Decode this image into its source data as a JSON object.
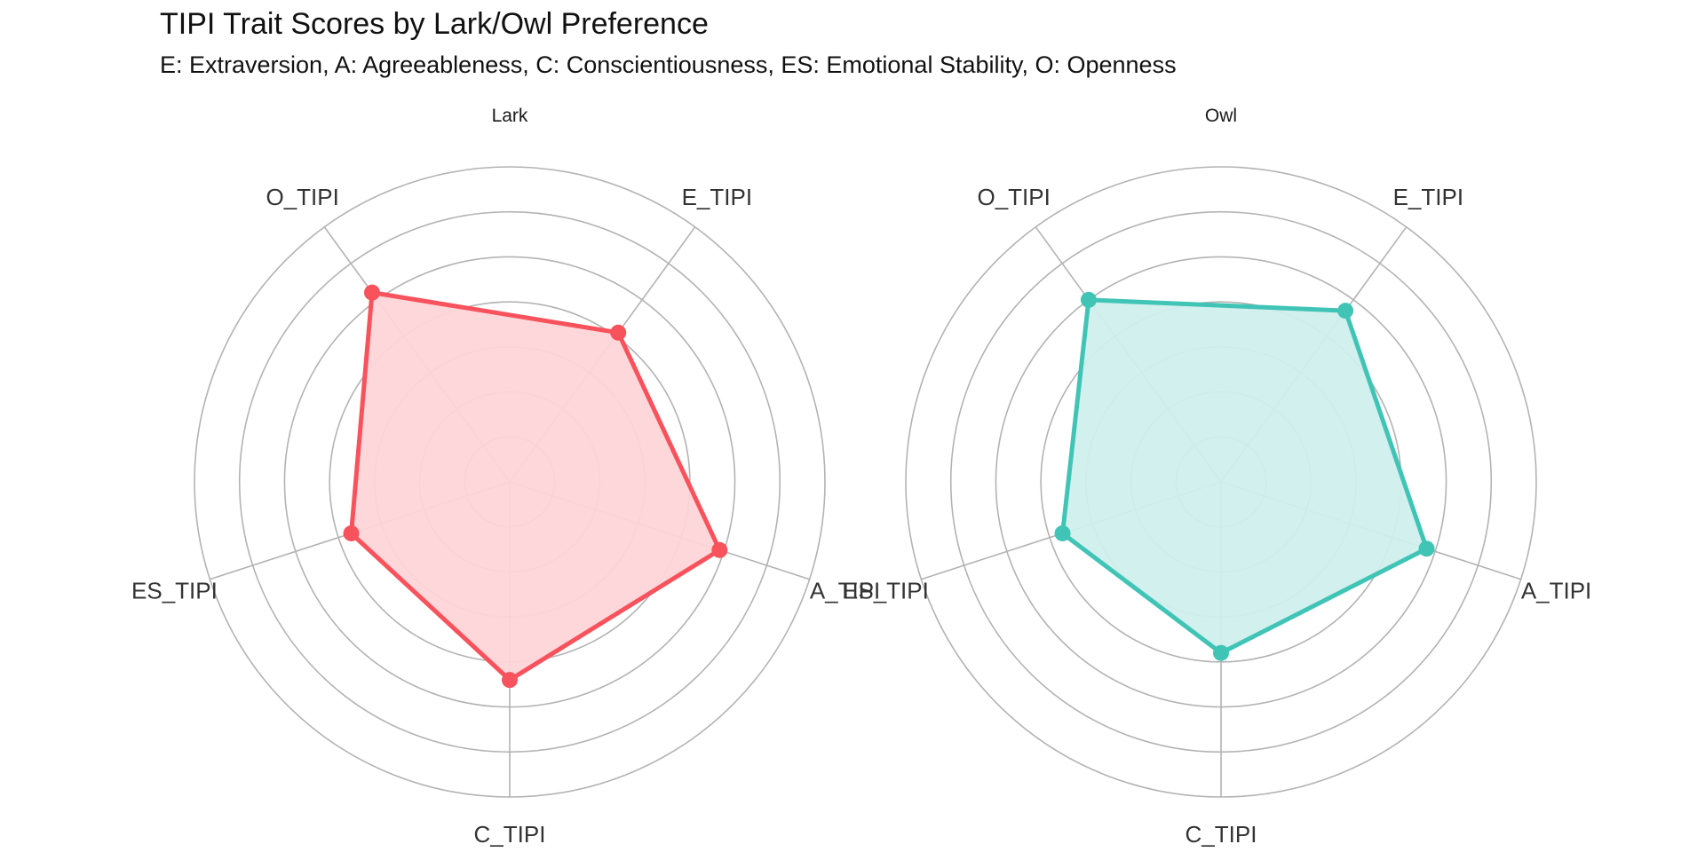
{
  "chart_data": {
    "type": "radar",
    "title": "TIPI Trait Scores by Lark/Owl Preference",
    "subtitle": "E: Extraversion, A: Agreeableness, C: Conscientiousness, ES: Emotional Stability, O: Openness",
    "axes": [
      "E_TIPI",
      "A_TIPI",
      "C_TIPI",
      "ES_TIPI",
      "O_TIPI"
    ],
    "rlim": [
      0,
      7
    ],
    "rings": [
      1,
      2,
      3,
      4,
      5,
      6,
      7
    ],
    "grid": true,
    "legend": "none",
    "facets": [
      {
        "name": "Lark",
        "color": "#F8525C",
        "fill": "#FDD5D7",
        "values": [
          4.1,
          4.9,
          4.4,
          3.7,
          5.2
        ]
      },
      {
        "name": "Owl",
        "color": "#40C4B6",
        "fill": "#D0EFEC",
        "values": [
          4.7,
          4.8,
          3.8,
          3.7,
          5.0
        ]
      }
    ]
  }
}
